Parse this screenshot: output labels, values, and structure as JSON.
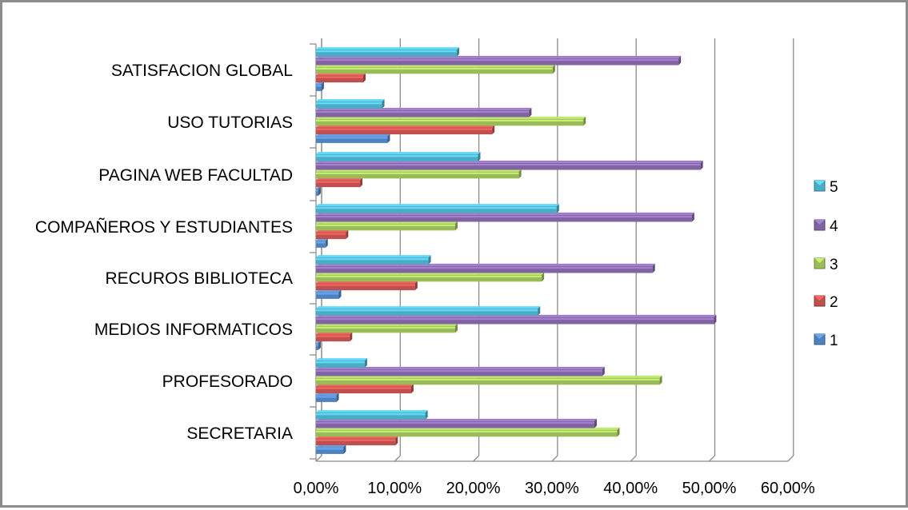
{
  "chart_data": {
    "type": "bar",
    "orientation": "horizontal",
    "style": "3d-clustered",
    "categories": [
      "SECRETARIA",
      "PROFESORADO",
      "MEDIOS INFORMATICOS",
      "RECUROS BIBLIOTECA",
      "COMPAÑEROS Y ESTUDIANTES",
      "PAGINA WEB FACULTAD",
      "USO TUTORIAS",
      "SATISFACION GLOBAL"
    ],
    "series": [
      {
        "name": "1",
        "color": "#4f81bd",
        "values": [
          3.5,
          2.6,
          0.3,
          2.9,
          1.2,
          0.3,
          9.1,
          0.7
        ]
      },
      {
        "name": "2",
        "color": "#c0504d",
        "values": [
          10.1,
          12.1,
          4.3,
          12.6,
          3.8,
          5.6,
          22.4,
          6.0
        ]
      },
      {
        "name": "3",
        "color": "#9bbb59",
        "values": [
          38.3,
          43.7,
          17.7,
          28.7,
          17.7,
          25.8,
          34.0,
          30.1
        ]
      },
      {
        "name": "4",
        "color": "#8064a2",
        "values": [
          35.4,
          36.4,
          50.6,
          42.8,
          47.8,
          48.9,
          27.1,
          46.1
        ]
      },
      {
        "name": "5",
        "color": "#4bacc6",
        "values": [
          13.9,
          6.2,
          28.2,
          14.3,
          30.6,
          20.6,
          8.4,
          17.9
        ]
      }
    ],
    "xlim": [
      0,
      60
    ],
    "x_ticks": [
      "0,00%",
      "10,00%",
      "20,00%",
      "30,00%",
      "40,00%",
      "50,00%",
      "60,00%"
    ],
    "grid": true,
    "legend": "right"
  }
}
